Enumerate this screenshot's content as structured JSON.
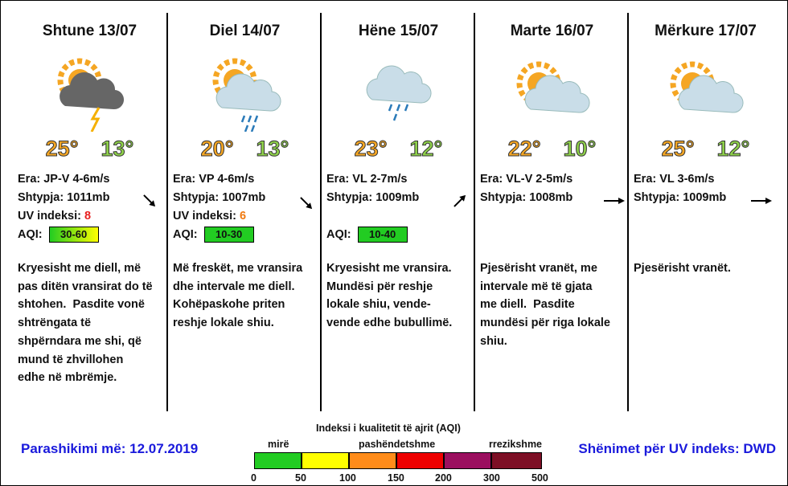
{
  "days": [
    {
      "date": "Shtune 13/07",
      "high": "25°",
      "low": "13°",
      "wind": "Era: JP-V 4-6m/s",
      "pressure": "Shtypja: 1011mb",
      "uv_label": "UV indeksi:",
      "uv": "8",
      "aqi_label": "AQI:",
      "aqi": "30-60",
      "description": [
        "Kryesisht me diell, më",
        "pas ditën vransirat do të",
        "shtohen.  Pasdite vonë",
        "shtrëngata të",
        "shpërndara me shi, që",
        "mund të zhvillohen",
        "edhe në mbrëmje."
      ]
    },
    {
      "date": "Diel 14/07",
      "high": "20°",
      "low": "13°",
      "wind": "Era: VP 4-6m/s",
      "pressure": "Shtypja: 1007mb",
      "uv_label": "UV indeksi:",
      "uv": "6",
      "aqi_label": "AQI:",
      "aqi": "10-30",
      "description": [
        "Më freskët, me vransira",
        "dhe intervale me diell.",
        "Kohëpaskohe priten",
        "reshje lokale shiu."
      ]
    },
    {
      "date": "Hëne 15/07",
      "high": "23°",
      "low": "12°",
      "wind": "Era: VL 2-7m/s",
      "pressure": "Shtypja: 1009mb",
      "aqi_label": "AQI:",
      "aqi": "10-40",
      "description": [
        "Kryesisht me vransira.",
        "Mundësi për reshje",
        "lokale shiu, vende-",
        "vende edhe bubullimë."
      ]
    },
    {
      "date": "Marte 16/07",
      "high": "22°",
      "low": "10°",
      "wind": "Era: VL-V 2-5m/s",
      "pressure": "Shtypja: 1008mb",
      "description": [
        "Pjesërisht vranët, me",
        "intervale më të gjata",
        "me diell.  Pasdite",
        "mundësi për riga lokale",
        "shiu."
      ]
    },
    {
      "date": "Mërkure 17/07",
      "high": "25°",
      "low": "12°",
      "wind": "Era: VL 3-6m/s",
      "pressure": "Shtypja: 1009mb",
      "description": [
        "Pjesërisht vranët."
      ]
    }
  ],
  "footer": {
    "issued": "Parashikimi më: 12.07.2019",
    "uv_source": "Shënimet për UV indeks: DWD"
  },
  "aqi_scale": {
    "title": "Indeksi i kualitetit të ajrit (AQI)",
    "labels": [
      "mirë",
      "pashëndetshme",
      "rrezikshme"
    ],
    "ticks": [
      "0",
      "50",
      "100",
      "150",
      "200",
      "300",
      "500"
    ]
  }
}
